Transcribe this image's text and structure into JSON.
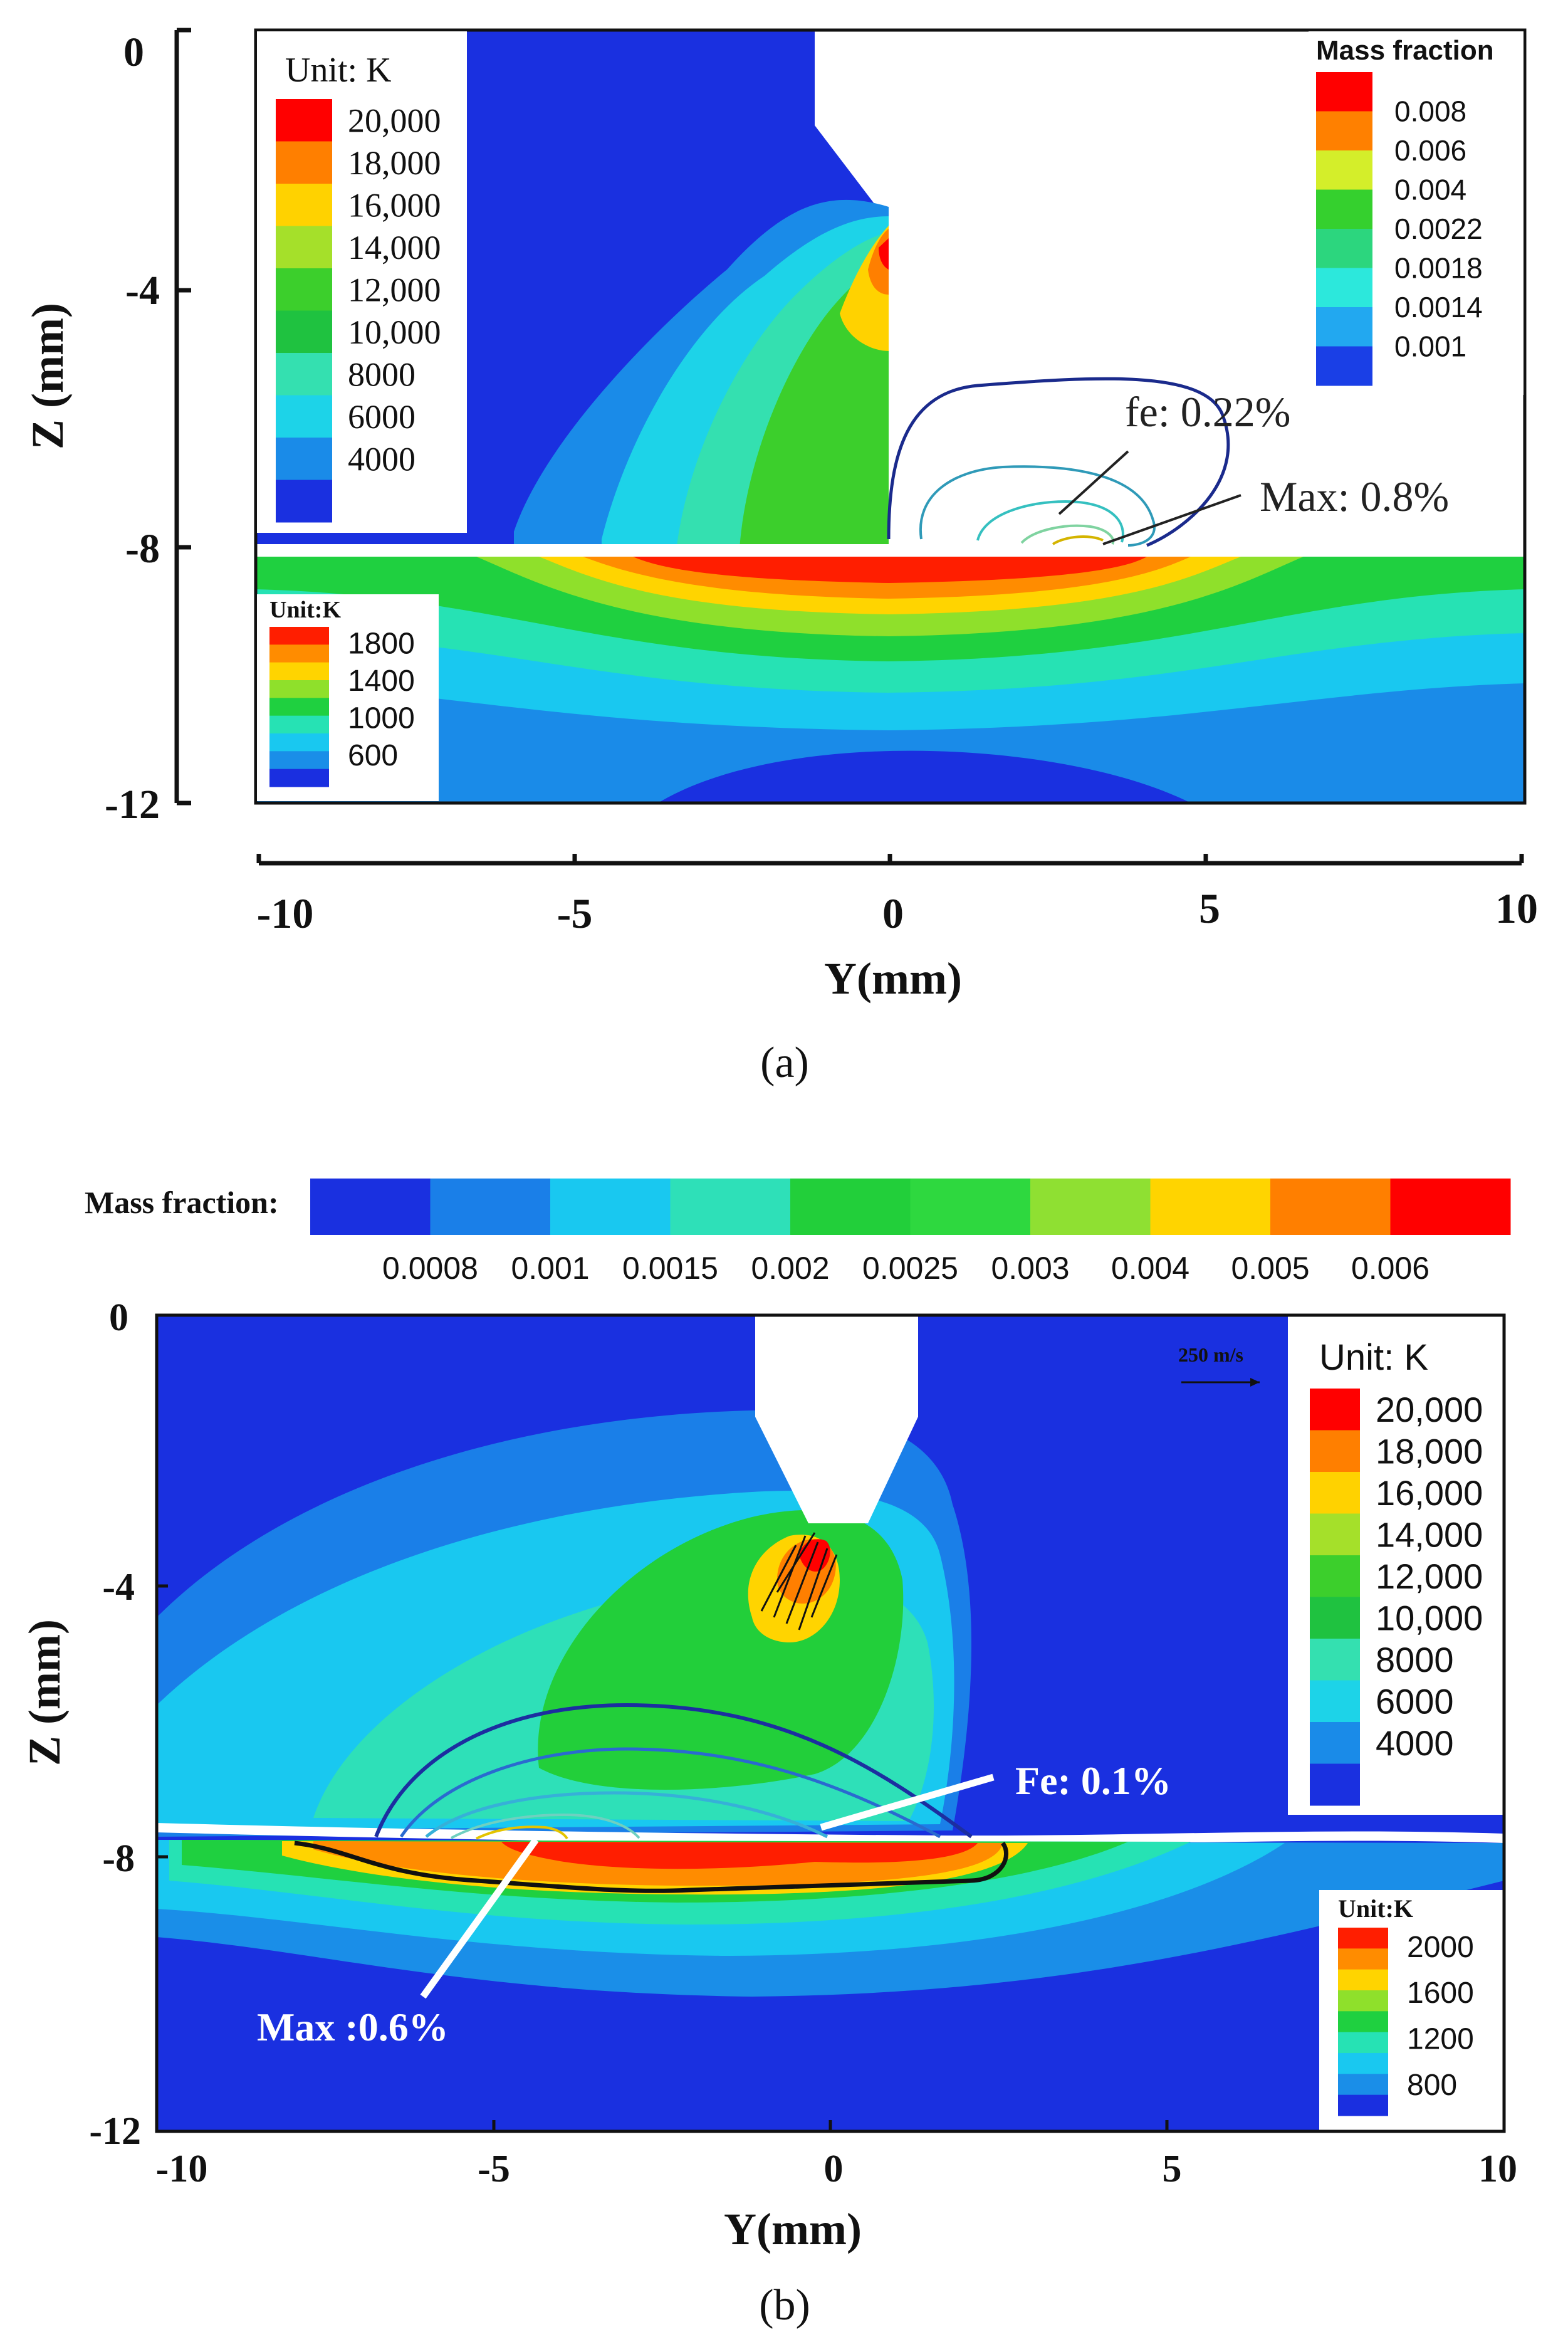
{
  "panel_a": {
    "caption": "(a)",
    "ylabel": "Z (mm)",
    "xlabel": "Y(mm)",
    "yticks": [
      "0",
      "-4",
      "-8",
      "-12"
    ],
    "xticks": [
      "-10",
      "-5",
      "0",
      "5",
      "10"
    ],
    "temp_legend": {
      "title": "Unit: K",
      "labels": [
        "20,000",
        "18,000",
        "16,000",
        "14,000",
        "12,000",
        "10,000",
        "8000",
        "6000",
        "4000"
      ],
      "colors": [
        "#ff0000",
        "#ff7f00",
        "#ffd200",
        "#a5e02a",
        "#3ccf2c",
        "#1fc240",
        "#34e0b0",
        "#1dd3e8",
        "#1a8be8",
        "#1a30e0"
      ]
    },
    "workpiece_legend": {
      "title": "Unit:K",
      "labels": [
        "1800",
        "1400",
        "1000",
        "600"
      ],
      "colors": [
        "#ff1e00",
        "#ff8c00",
        "#ffd400",
        "#8fe02b",
        "#1fd040",
        "#26e2b4",
        "#19c8f0",
        "#1a8ee8",
        "#1a2fe0"
      ]
    },
    "mass_legend": {
      "title": "Mass fraction",
      "labels": [
        "0.008",
        "0.006",
        "0.004",
        "0.0022",
        "0.0018",
        "0.0014",
        "0.001"
      ],
      "colors": [
        "#ff0000",
        "#ff8000",
        "#d4ee2a",
        "#35d02e",
        "#2cd67e",
        "#2ce8dc",
        "#22a8f0",
        "#1a3fe6"
      ]
    },
    "annotations": [
      "fe: 0.22%",
      "Max: 0.8%"
    ]
  },
  "panel_b": {
    "caption": "(b)",
    "ylabel": "Z (mm)",
    "xlabel": "Y(mm)",
    "yticks": [
      "0",
      "-4",
      "-8",
      "-12"
    ],
    "xticks": [
      "-10",
      "-5",
      "0",
      "5",
      "10"
    ],
    "mass_legend": {
      "title": "Mass fraction:",
      "labels": [
        "0.0008",
        "0.001",
        "0.0015",
        "0.002",
        "0.0025",
        "0.003",
        "0.004",
        "0.005",
        "0.006"
      ],
      "colors": [
        "#1a30e0",
        "#1a7fe8",
        "#19c8f0",
        "#2ee0b8",
        "#22cf3a",
        "#2ed83f",
        "#8fe032",
        "#ffd400",
        "#ff7f00",
        "#ff0000"
      ]
    },
    "temp_legend": {
      "title": "Unit: K",
      "labels": [
        "20,000",
        "18,000",
        "16,000",
        "14,000",
        "12,000",
        "10,000",
        "8000",
        "6000",
        "4000"
      ],
      "colors": [
        "#ff0000",
        "#ff7f00",
        "#ffd200",
        "#a5e02a",
        "#3ccf2c",
        "#1fc240",
        "#34e0b0",
        "#1dd3e8",
        "#1a8be8",
        "#1a30e0"
      ]
    },
    "workpiece_legend": {
      "title": "Unit:K",
      "labels": [
        "2000",
        "1600",
        "1200",
        "800"
      ],
      "colors": [
        "#ff1e00",
        "#ff8c00",
        "#ffd400",
        "#8fe02b",
        "#1fd040",
        "#26e2b4",
        "#19c8f0",
        "#1a8ee8",
        "#1a2fe0"
      ]
    },
    "velocity_label": "250 m/s",
    "annotations": [
      "Fe: 0.1%",
      "Max :0.6%"
    ]
  }
}
